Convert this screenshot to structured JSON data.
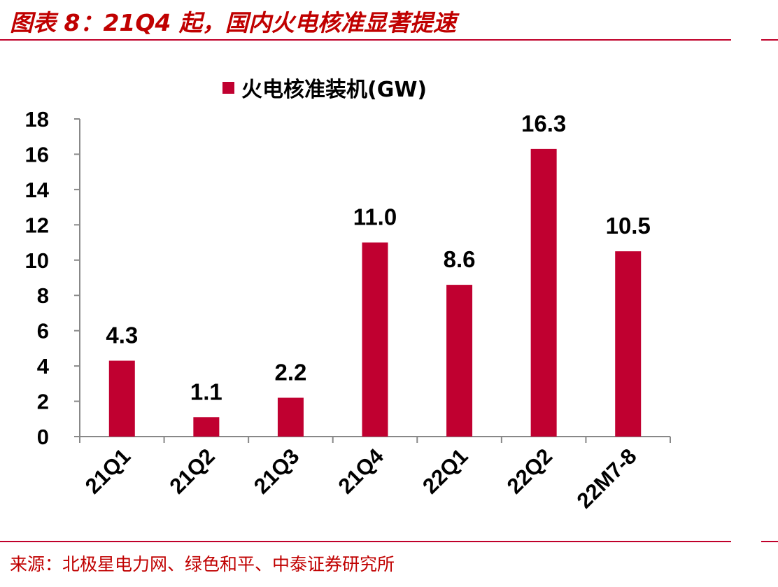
{
  "page": {
    "title": "图表 8：21Q4 起，国内火电核准显著提速",
    "source": "来源：北极星电力网、绿色和平、中泰证券研究所"
  },
  "colors": {
    "bar": "#c00030",
    "accent": "#c00000"
  },
  "chart_data": {
    "type": "bar",
    "categories": [
      "21Q1",
      "21Q2",
      "21Q3",
      "21Q4",
      "22Q1",
      "22Q2",
      "22M7-8"
    ],
    "series": [
      {
        "name": "火电核准装机(GW)",
        "values": [
          4.3,
          1.1,
          2.2,
          11.0,
          8.6,
          16.3,
          10.5
        ]
      }
    ],
    "data_labels": [
      "4.3",
      "1.1",
      "2.2",
      "11.0",
      "8.6",
      "16.3",
      "10.5"
    ],
    "yticks": [
      "0",
      "2",
      "4",
      "6",
      "8",
      "10",
      "12",
      "14",
      "16",
      "18"
    ],
    "ylim": [
      0,
      18
    ],
    "legend": "top-center",
    "grid": false
  }
}
